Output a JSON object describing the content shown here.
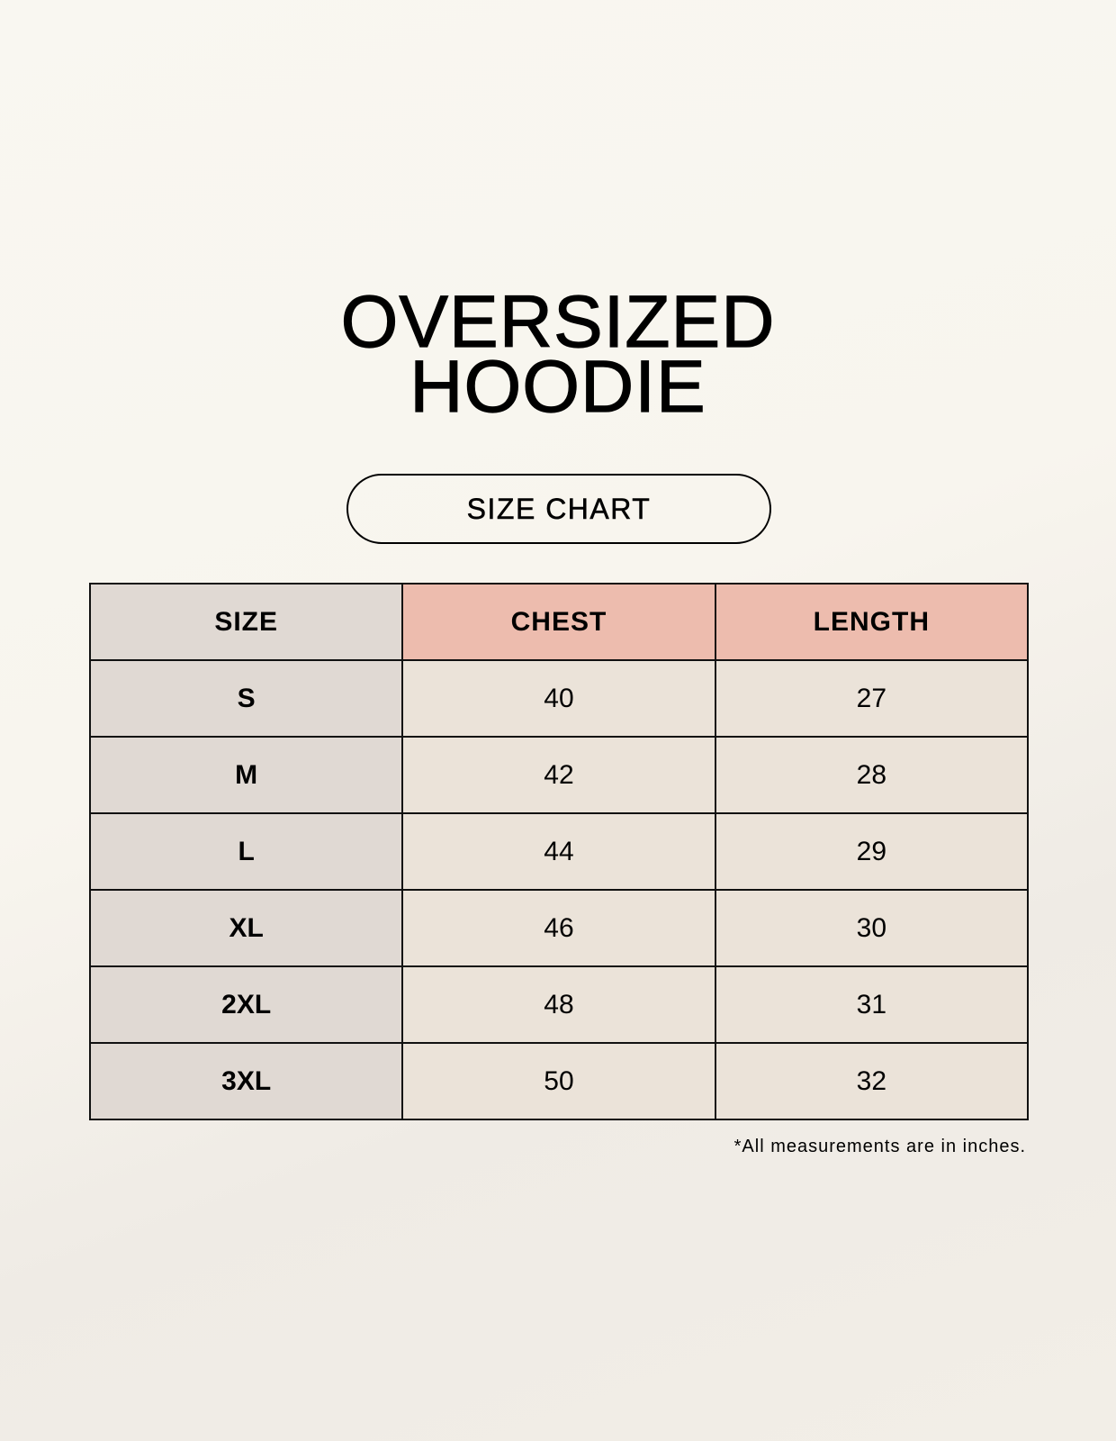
{
  "title_line1": "OVERSIZED",
  "title_line2": "HOODIE",
  "badge": "SIZE CHART",
  "table": {
    "headers": [
      "SIZE",
      "CHEST",
      "LENGTH"
    ],
    "rows": [
      [
        "S",
        "40",
        "27"
      ],
      [
        "M",
        "42",
        "28"
      ],
      [
        "L",
        "44",
        "29"
      ],
      [
        "XL",
        "46",
        "30"
      ],
      [
        "2XL",
        "48",
        "31"
      ],
      [
        "3XL",
        "50",
        "32"
      ]
    ]
  },
  "footnote": "*All measurements are in inches.",
  "colors": {
    "size_column": "#e0d9d3",
    "header_accent": "#edbcae",
    "cell": "#ebe3d9"
  }
}
